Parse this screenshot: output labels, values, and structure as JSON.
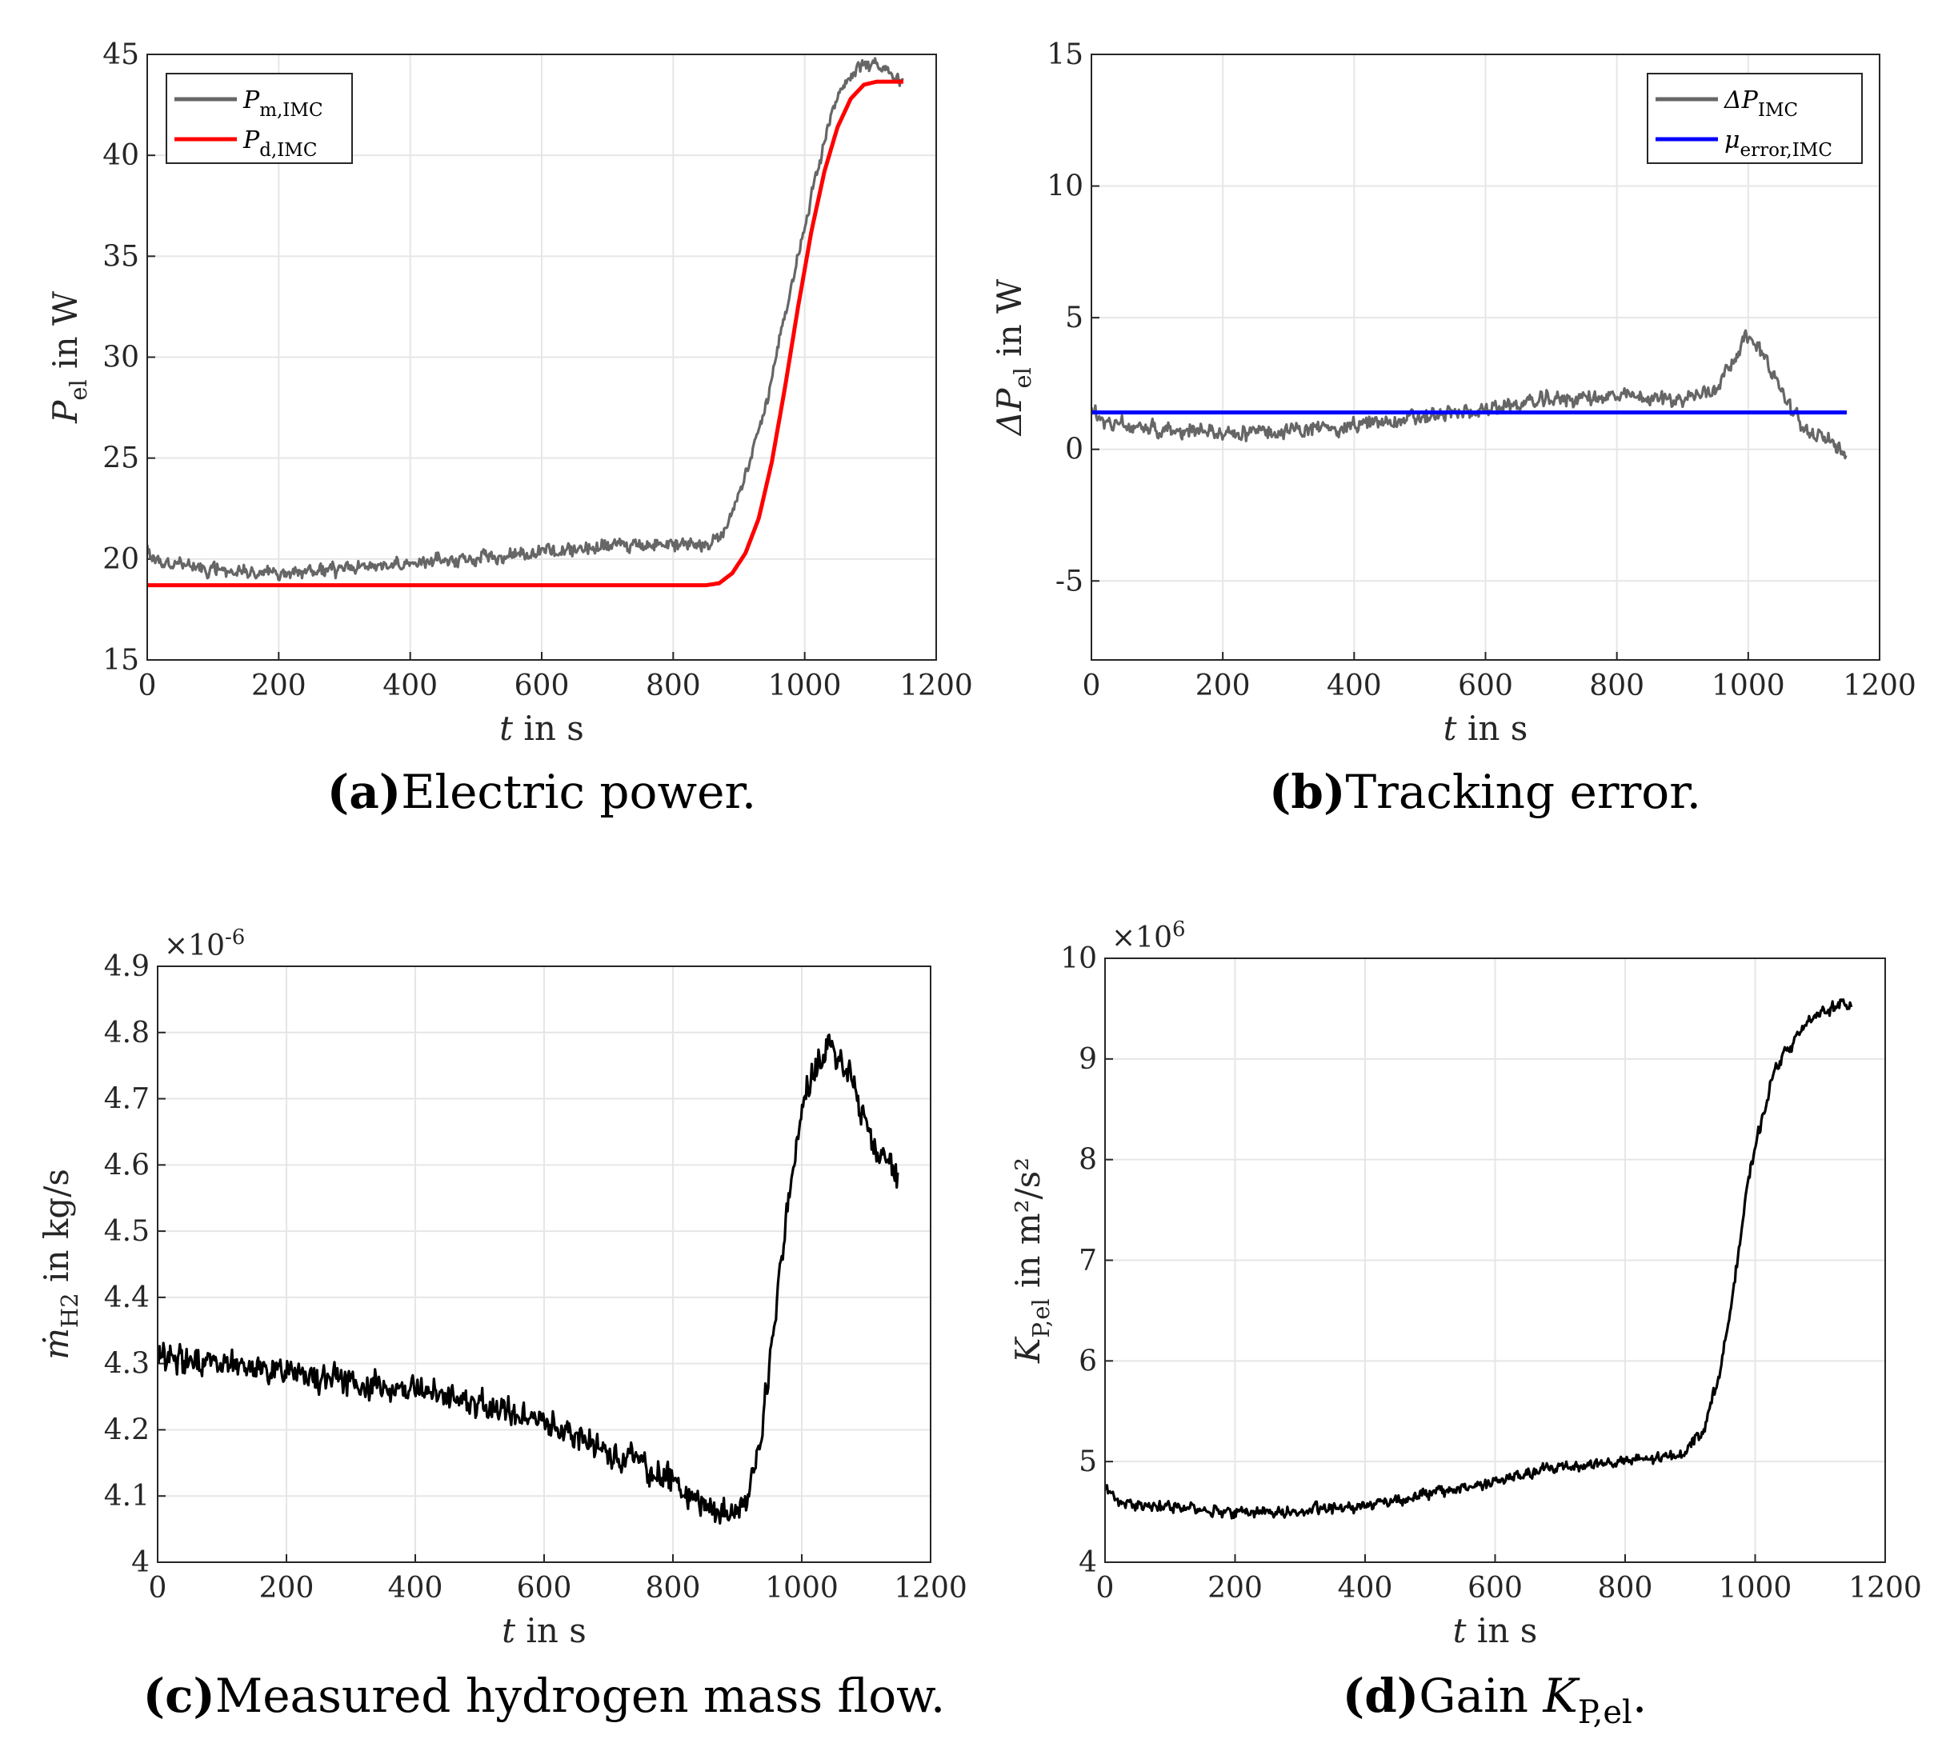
{
  "colors": {
    "measured": "#666666",
    "reference": "#ff0000",
    "mean": "#0000ff",
    "black": "#000000"
  },
  "chart_data": [
    {
      "id": "a",
      "type": "line",
      "caption_letter": "(a)",
      "caption_text": "Electric power.",
      "xlabel": "t in s",
      "ylabel": "P_el in W",
      "xlim": [
        0,
        1200
      ],
      "ylim": [
        15,
        45
      ],
      "xticks": [
        "0",
        "200",
        "400",
        "600",
        "800",
        "1000",
        "1200"
      ],
      "yticks": [
        "15",
        "20",
        "25",
        "30",
        "35",
        "40",
        "45"
      ],
      "exponent": "",
      "legend": {
        "position": "top-left",
        "entries": [
          "P_m,IMC",
          "P_d,IMC"
        ]
      },
      "series": [
        {
          "name": "P_m,IMC",
          "color": "#666666",
          "noise": 0.35,
          "seed": 11,
          "x": [
            0,
            20,
            100,
            200,
            300,
            400,
            500,
            600,
            700,
            800,
            850,
            880,
            910,
            940,
            960,
            980,
            1000,
            1020,
            1040,
            1060,
            1080,
            1100,
            1120,
            1150
          ],
          "y": [
            20.4,
            19.9,
            19.5,
            19.3,
            19.5,
            19.8,
            20.1,
            20.4,
            20.6,
            20.7,
            20.8,
            21.6,
            24.0,
            27.5,
            30.5,
            33.5,
            36.5,
            39.5,
            42.0,
            43.6,
            44.3,
            44.5,
            44.2,
            43.6
          ]
        },
        {
          "name": "P_d,IMC",
          "color": "#ff0000",
          "noise": 0,
          "seed": 0,
          "x": [
            0,
            850,
            870,
            890,
            910,
            930,
            950,
            970,
            990,
            1010,
            1030,
            1050,
            1070,
            1090,
            1110,
            1150
          ],
          "y": [
            18.7,
            18.7,
            18.8,
            19.3,
            20.3,
            22.0,
            24.8,
            28.5,
            32.5,
            36.2,
            39.2,
            41.4,
            42.8,
            43.5,
            43.65,
            43.65
          ]
        }
      ]
    },
    {
      "id": "b",
      "type": "line",
      "caption_letter": "(b)",
      "caption_text": "Tracking error.",
      "xlabel": "t in s",
      "ylabel": "ΔP_el in W",
      "xlim": [
        0,
        1200
      ],
      "ylim": [
        -8,
        15
      ],
      "xticks": [
        "0",
        "200",
        "400",
        "600",
        "800",
        "1000",
        "1200"
      ],
      "yticks": [
        "-5",
        "0",
        "5",
        "10",
        "15"
      ],
      "ytick_values": [
        -5,
        0,
        5,
        10,
        15
      ],
      "exponent": "",
      "legend": {
        "position": "top-right",
        "entries": [
          "ΔP_IMC",
          "μ_error,IMC"
        ]
      },
      "series": [
        {
          "name": "ΔP_IMC",
          "color": "#666666",
          "noise": 0.3,
          "seed": 23,
          "x": [
            0,
            20,
            100,
            200,
            300,
            400,
            500,
            600,
            700,
            800,
            900,
            950,
            980,
            1000,
            1020,
            1050,
            1080,
            1110,
            1150
          ],
          "y": [
            1.6,
            1.0,
            0.8,
            0.6,
            0.7,
            0.9,
            1.2,
            1.5,
            1.9,
            2.0,
            1.9,
            2.3,
            3.6,
            4.3,
            3.8,
            2.2,
            0.9,
            0.4,
            0.0
          ]
        },
        {
          "name": "μ_error,IMC",
          "color": "#0000ff",
          "noise": 0,
          "seed": 0,
          "x": [
            0,
            1150
          ],
          "y": [
            1.4,
            1.4
          ]
        }
      ]
    },
    {
      "id": "c",
      "type": "line",
      "caption_letter": "(c)",
      "caption_text": "Measured hydrogen mass flow.",
      "xlabel": "t in s",
      "ylabel": "ṁ_H2 in kg/s",
      "xlim": [
        0,
        1200
      ],
      "ylim": [
        4.0,
        4.9
      ],
      "xticks": [
        "0",
        "200",
        "400",
        "600",
        "800",
        "1000",
        "1200"
      ],
      "yticks": [
        "4",
        "4.1",
        "4.2",
        "4.3",
        "4.4",
        "4.5",
        "4.6",
        "4.7",
        "4.8",
        "4.9"
      ],
      "exponent": "×10",
      "exponent_power": "-6",
      "legend": null,
      "series": [
        {
          "name": "ṁ_H2",
          "color": "#000000",
          "noise": 0.022,
          "seed": 37,
          "x": [
            0,
            40,
            100,
            200,
            300,
            400,
            500,
            600,
            700,
            800,
            860,
            900,
            920,
            940,
            960,
            980,
            1000,
            1020,
            1040,
            1060,
            1080,
            1100,
            1120,
            1150
          ],
          "y": [
            4.31,
            4.3,
            4.3,
            4.29,
            4.27,
            4.26,
            4.24,
            4.21,
            4.17,
            4.12,
            4.08,
            4.07,
            4.12,
            4.22,
            4.38,
            4.55,
            4.68,
            4.75,
            4.78,
            4.77,
            4.72,
            4.66,
            4.61,
            4.58
          ]
        }
      ]
    },
    {
      "id": "d",
      "type": "line",
      "caption_letter": "(d)",
      "caption_text": "Gain K",
      "caption_sub": "P,el",
      "caption_end": ".",
      "xlabel": "t in s",
      "ylabel": "K_P,el in m²/s²",
      "xlim": [
        0,
        1200
      ],
      "ylim": [
        4,
        10
      ],
      "xticks": [
        "0",
        "200",
        "400",
        "600",
        "800",
        "1000",
        "1200"
      ],
      "yticks": [
        "4",
        "5",
        "6",
        "7",
        "8",
        "9",
        "10"
      ],
      "exponent": "×10",
      "exponent_power": "6",
      "legend": null,
      "series": [
        {
          "name": "K_P,el",
          "color": "#000000",
          "noise": 0.06,
          "seed": 53,
          "x": [
            0,
            20,
            100,
            200,
            300,
            400,
            500,
            600,
            700,
            800,
            880,
            920,
            950,
            970,
            990,
            1010,
            1030,
            1050,
            1080,
            1110,
            1150
          ],
          "y": [
            4.75,
            4.6,
            4.55,
            4.5,
            4.5,
            4.57,
            4.68,
            4.8,
            4.95,
            5.0,
            5.05,
            5.3,
            6.0,
            6.9,
            7.8,
            8.4,
            8.9,
            9.1,
            9.35,
            9.5,
            9.55
          ]
        }
      ]
    }
  ]
}
